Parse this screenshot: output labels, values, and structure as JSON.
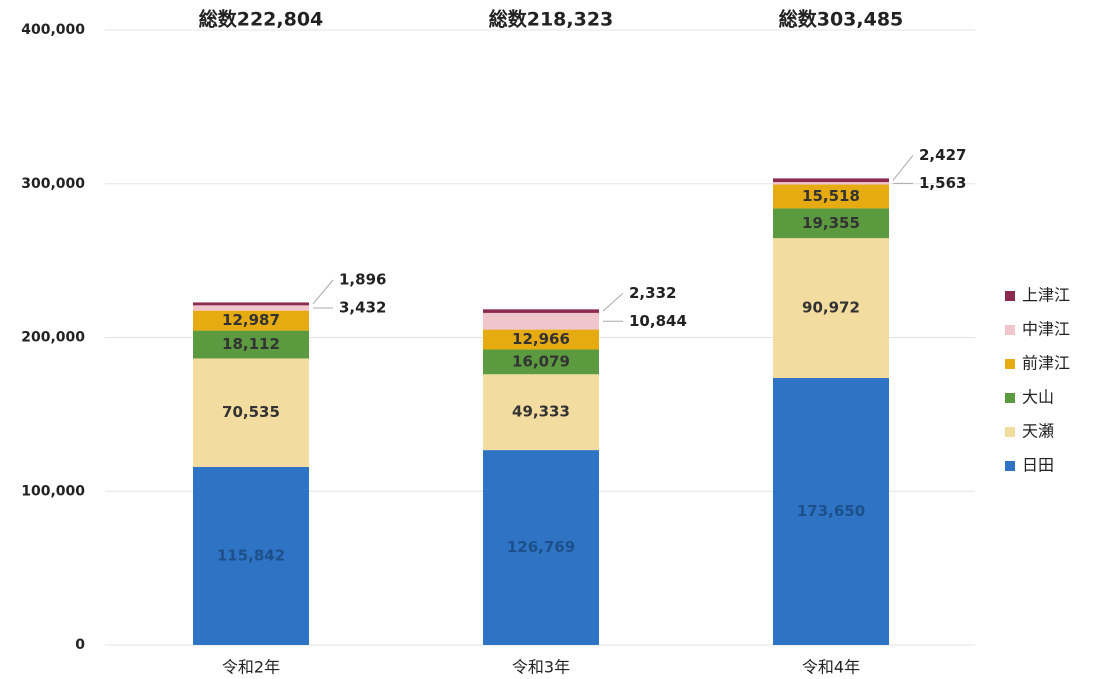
{
  "chart_data": {
    "type": "stacked-bar",
    "categories": [
      "令和2年",
      "令和3年",
      "令和4年"
    ],
    "total_labels": [
      "総数222,804",
      "総数218,323",
      "総数303,485"
    ],
    "series": [
      {
        "name": "日田",
        "color": "#2f74c4",
        "values": [
          115842,
          126769,
          173650
        ],
        "value_labels": [
          "115,842",
          "126,769",
          "173,650"
        ]
      },
      {
        "name": "天瀬",
        "color": "#f2dc9f",
        "values": [
          70535,
          49333,
          90972
        ],
        "value_labels": [
          "70,535",
          "49,333",
          "90,972"
        ]
      },
      {
        "name": "大山",
        "color": "#5b9a3f",
        "values": [
          18112,
          16079,
          19355
        ],
        "value_labels": [
          "18,112",
          "16,079",
          "19,355"
        ]
      },
      {
        "name": "前津江",
        "color": "#e6ab10",
        "values": [
          12987,
          12966,
          15518
        ],
        "value_labels": [
          "12,987",
          "12,966",
          "15,518"
        ]
      },
      {
        "name": "中津江",
        "color": "#f1c5cc",
        "values": [
          3432,
          10844,
          1563
        ],
        "value_labels": [
          "3,432",
          "10,844",
          "1,563"
        ]
      },
      {
        "name": "上津江",
        "color": "#8c2b50",
        "values": [
          1896,
          2332,
          2427
        ],
        "value_labels": [
          "1,896",
          "2,332",
          "2,427"
        ]
      }
    ],
    "ylim": [
      0,
      400000
    ],
    "yticks": [
      0,
      {
        "value": 100000,
        "label": "100,000"
      },
      {
        "value": 200000,
        "label": "200,000"
      },
      {
        "value": 300000,
        "label": "300,000"
      },
      {
        "value": 400000,
        "label": "400,000"
      }
    ],
    "grid": true,
    "legend": "right"
  }
}
